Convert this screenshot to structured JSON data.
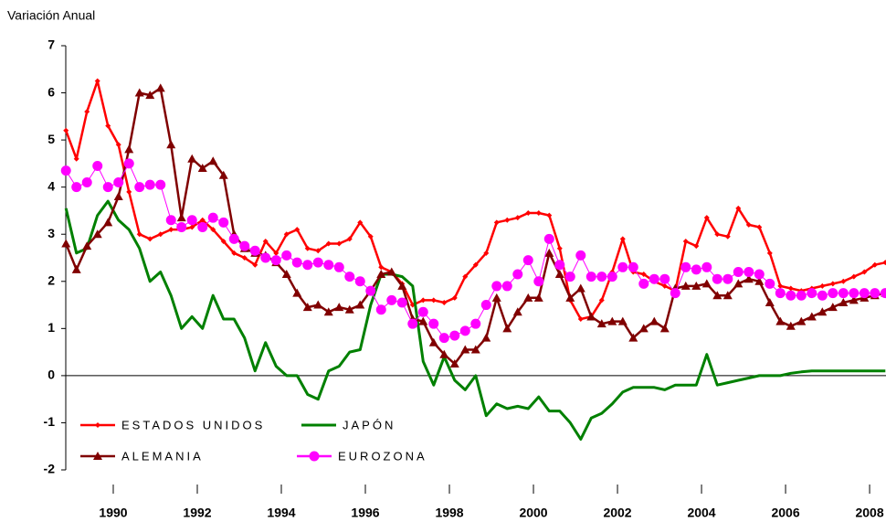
{
  "chart_data": {
    "type": "line",
    "y_label": "Variación Anual",
    "xlim": [
      1989.37,
      2008.89
    ],
    "ylim": [
      -2,
      7
    ],
    "yticks": [
      -2,
      -1,
      0,
      1,
      2,
      3,
      4,
      5,
      6,
      7
    ],
    "xticks": [
      {
        "value": 1990.5,
        "label": "1990"
      },
      {
        "value": 1992.5,
        "label": "1992"
      },
      {
        "value": 1994.5,
        "label": "1994"
      },
      {
        "value": 1996.5,
        "label": "1996"
      },
      {
        "value": 1998.5,
        "label": "1998"
      },
      {
        "value": 2000.5,
        "label": "2000"
      },
      {
        "value": 2002.5,
        "label": "2002"
      },
      {
        "value": 2004.5,
        "label": "2004"
      },
      {
        "value": 2006.5,
        "label": "2006"
      },
      {
        "value": 2008.5,
        "label": "2008"
      }
    ],
    "x": [
      1989.375,
      1989.625,
      1989.875,
      1990.125,
      1990.375,
      1990.625,
      1990.875,
      1991.125,
      1991.375,
      1991.625,
      1991.875,
      1992.125,
      1992.375,
      1992.625,
      1992.875,
      1993.125,
      1993.375,
      1993.625,
      1993.875,
      1994.125,
      1994.375,
      1994.625,
      1994.875,
      1995.125,
      1995.375,
      1995.625,
      1995.875,
      1996.125,
      1996.375,
      1996.625,
      1996.875,
      1997.125,
      1997.375,
      1997.625,
      1997.875,
      1998.125,
      1998.375,
      1998.625,
      1998.875,
      1999.125,
      1999.375,
      1999.625,
      1999.875,
      2000.125,
      2000.375,
      2000.625,
      2000.875,
      2001.125,
      2001.375,
      2001.625,
      2001.875,
      2002.125,
      2002.375,
      2002.625,
      2002.875,
      2003.125,
      2003.375,
      2003.625,
      2003.875,
      2004.125,
      2004.375,
      2004.625,
      2004.875,
      2005.125,
      2005.375,
      2005.625,
      2005.875,
      2006.125,
      2006.375,
      2006.625,
      2006.875,
      2007.125,
      2007.375,
      2007.625,
      2007.875,
      2008.125,
      2008.375,
      2008.625,
      2008.875
    ],
    "series": [
      {
        "name": "ESTADOS UNIDOS",
        "color": "#ff0000",
        "marker": "diamond",
        "values": [
          5.2,
          4.6,
          5.6,
          6.25,
          5.3,
          4.9,
          3.9,
          3.0,
          2.9,
          3.0,
          3.1,
          3.1,
          3.15,
          3.3,
          3.1,
          2.85,
          2.6,
          2.5,
          2.35,
          2.85,
          2.6,
          3.0,
          3.1,
          2.7,
          2.65,
          2.8,
          2.8,
          2.9,
          3.25,
          2.95,
          2.3,
          2.2,
          1.95,
          1.5,
          1.6,
          1.6,
          1.55,
          1.65,
          2.1,
          2.35,
          2.6,
          3.25,
          3.3,
          3.35,
          3.45,
          3.45,
          3.4,
          2.7,
          1.6,
          1.2,
          1.25,
          1.6,
          2.2,
          2.9,
          2.2,
          2.15,
          2.0,
          1.9,
          1.8,
          2.85,
          2.75,
          3.35,
          3.0,
          2.95,
          3.55,
          3.2,
          3.15,
          2.6,
          1.9,
          1.85,
          1.8,
          1.85,
          1.9,
          1.95,
          2.0,
          2.1,
          2.2,
          2.35,
          2.4
        ]
      },
      {
        "name": "JAPÓN",
        "color": "#008000",
        "marker": "none",
        "values": [
          3.55,
          2.6,
          2.7,
          3.4,
          3.7,
          3.3,
          3.1,
          2.7,
          2.0,
          2.2,
          1.7,
          1.0,
          1.25,
          1.0,
          1.7,
          1.2,
          1.2,
          0.8,
          0.1,
          0.7,
          0.2,
          0.0,
          0.0,
          -0.4,
          -0.5,
          0.1,
          0.2,
          0.5,
          0.55,
          1.5,
          2.15,
          2.15,
          2.1,
          1.9,
          0.3,
          -0.2,
          0.4,
          -0.1,
          -0.3,
          0.0,
          -0.85,
          -0.6,
          -0.7,
          -0.65,
          -0.7,
          -0.45,
          -0.75,
          -0.75,
          -1.0,
          -1.35,
          -0.9,
          -0.8,
          -0.6,
          -0.35,
          -0.25,
          -0.25,
          -0.25,
          -0.3,
          -0.2,
          -0.2,
          -0.2,
          0.45,
          -0.2,
          -0.15,
          -0.1,
          -0.05,
          0.0,
          0.0,
          0.0,
          0.05,
          0.08,
          0.1,
          0.1,
          0.1,
          0.1,
          0.1,
          0.1,
          0.1,
          0.1
        ]
      },
      {
        "name": "ALEMANIA",
        "color": "#800000",
        "marker": "triangle",
        "values": [
          2.8,
          2.25,
          2.75,
          3.0,
          3.25,
          3.8,
          4.8,
          6.0,
          5.95,
          6.1,
          4.9,
          3.35,
          4.6,
          4.4,
          4.55,
          4.25,
          3.0,
          2.7,
          2.6,
          2.55,
          2.4,
          2.15,
          1.75,
          1.45,
          1.5,
          1.35,
          1.45,
          1.4,
          1.5,
          1.8,
          2.15,
          2.2,
          1.9,
          1.2,
          1.15,
          0.7,
          0.45,
          0.25,
          0.55,
          0.55,
          0.8,
          1.65,
          1.0,
          1.35,
          1.65,
          1.65,
          2.6,
          2.15,
          1.65,
          1.85,
          1.25,
          1.1,
          1.15,
          1.15,
          0.8,
          1.0,
          1.15,
          1.0,
          1.85,
          1.9,
          1.9,
          1.95,
          1.7,
          1.7,
          1.95,
          2.05,
          2.0,
          1.55,
          1.15,
          1.05,
          1.15,
          1.25,
          1.35,
          1.45,
          1.55,
          1.6,
          1.65,
          1.7,
          1.75
        ]
      },
      {
        "name": "EUROZONA",
        "color": "#ff00ff",
        "marker": "circle",
        "values": [
          4.35,
          4.0,
          4.1,
          4.45,
          4.0,
          4.1,
          4.5,
          4.0,
          4.05,
          4.05,
          3.3,
          3.15,
          3.3,
          3.15,
          3.35,
          3.25,
          2.9,
          2.75,
          2.65,
          2.5,
          2.45,
          2.55,
          2.4,
          2.35,
          2.4,
          2.35,
          2.3,
          2.1,
          2.0,
          1.8,
          1.4,
          1.6,
          1.55,
          1.1,
          1.35,
          1.1,
          0.8,
          0.85,
          0.95,
          1.1,
          1.5,
          1.9,
          1.9,
          2.15,
          2.45,
          2.0,
          2.9,
          2.35,
          2.1,
          2.55,
          2.1,
          2.1,
          2.1,
          2.3,
          2.3,
          1.95,
          2.05,
          2.05,
          1.75,
          2.3,
          2.25,
          2.3,
          2.05,
          2.05,
          2.2,
          2.2,
          2.15,
          1.95,
          1.75,
          1.7,
          1.7,
          1.75,
          1.7,
          1.75,
          1.75,
          1.75,
          1.75,
          1.75,
          1.75
        ]
      }
    ]
  }
}
